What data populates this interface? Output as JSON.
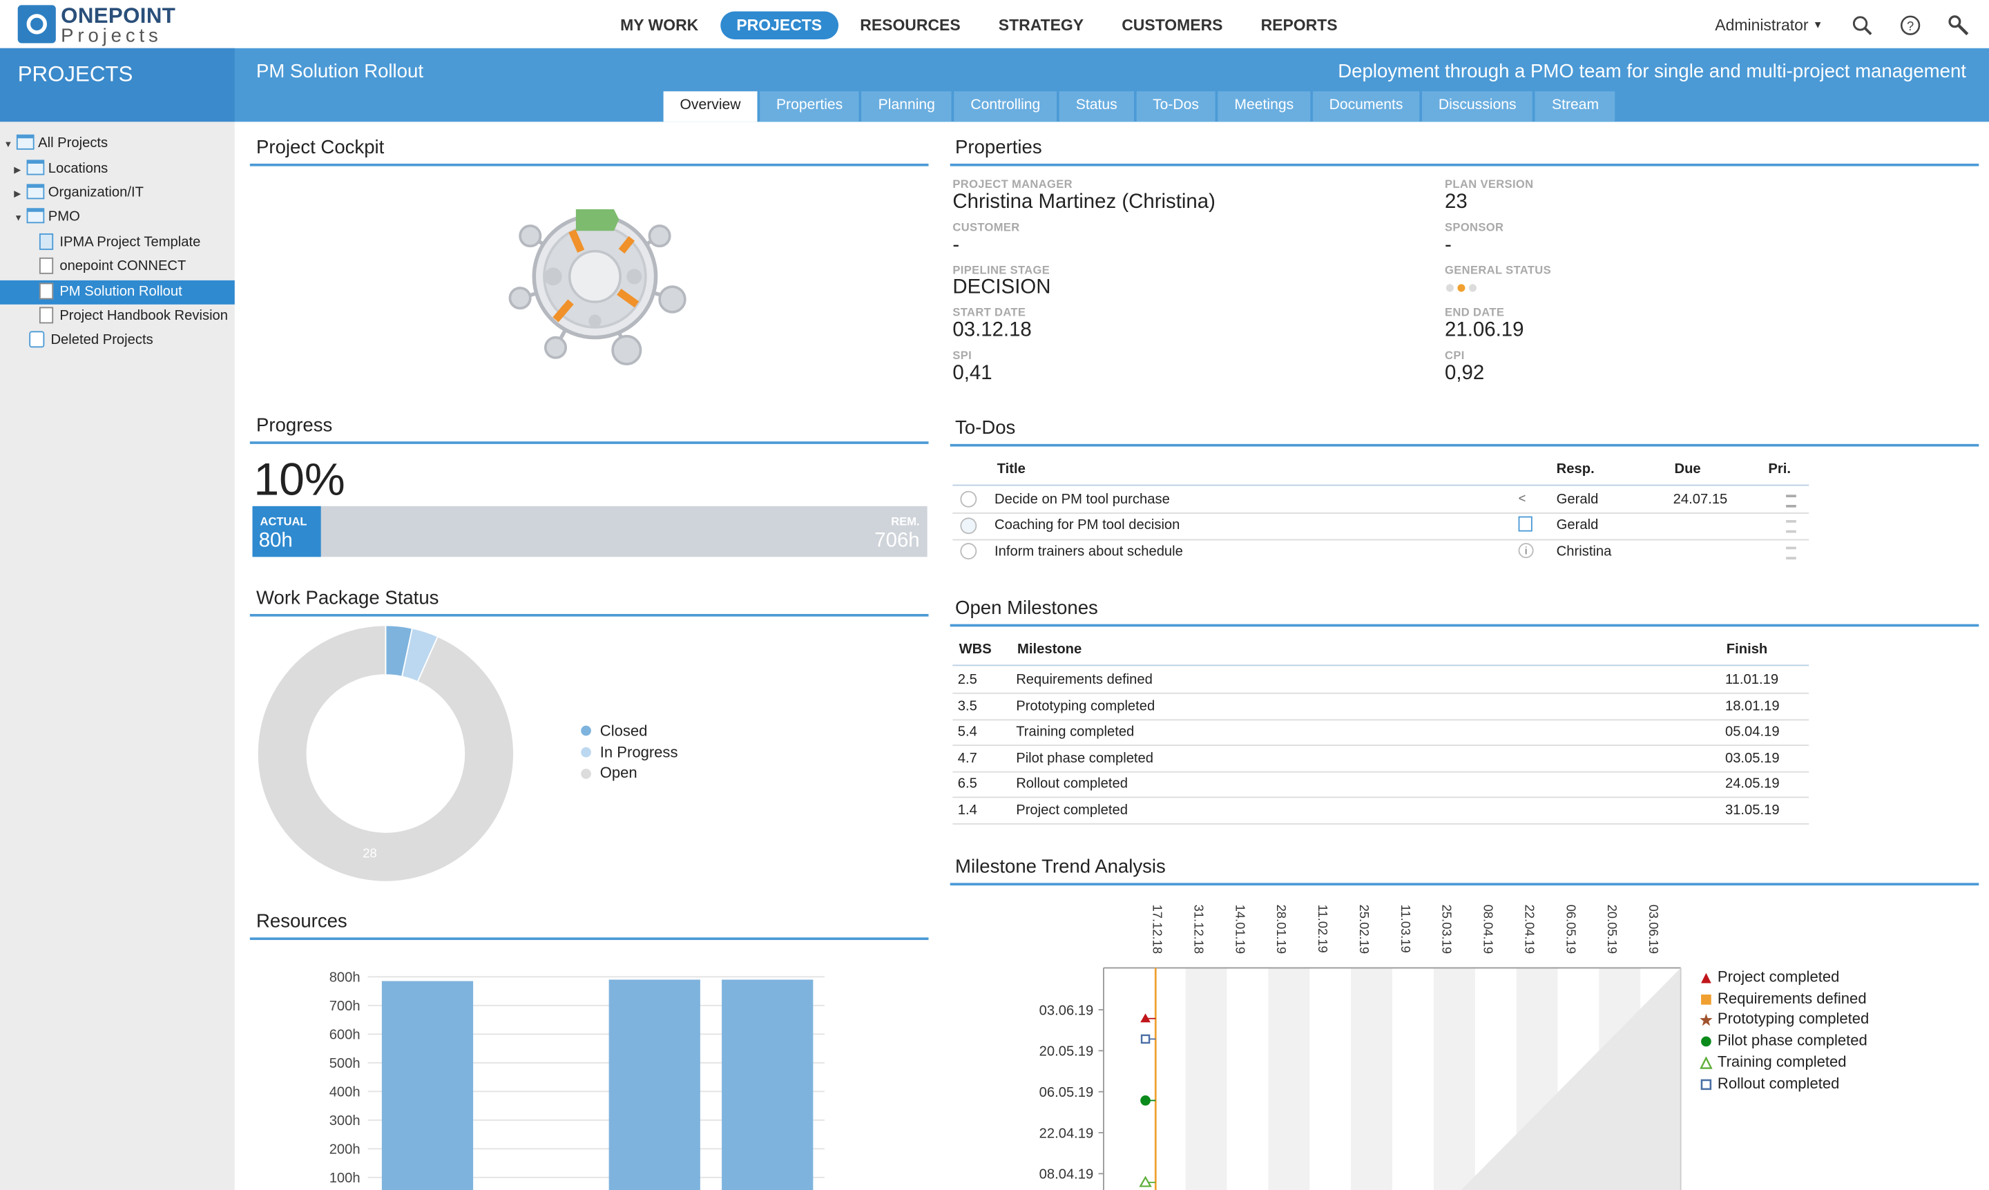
{
  "app": {
    "logo_line1": "ONEPOINT",
    "logo_line2": "Projects"
  },
  "nav": {
    "items": [
      "MY WORK",
      "PROJECTS",
      "RESOURCES",
      "STRATEGY",
      "CUSTOMERS",
      "REPORTS"
    ],
    "active": "PROJECTS",
    "user": "Administrator",
    "icons": [
      "search-icon",
      "help-icon",
      "tools-icon"
    ]
  },
  "sidebar": {
    "title": "PROJECTS",
    "tree": [
      {
        "label": "All Projects",
        "icon": "folder-icon"
      },
      {
        "label": "Locations",
        "icon": "folder-icon"
      },
      {
        "label": "Organization/IT",
        "icon": "folder-icon"
      },
      {
        "label": "PMO",
        "icon": "folder-icon"
      },
      {
        "label": "IPMA Project Template",
        "icon": "template-icon"
      },
      {
        "label": "onepoint CONNECT",
        "icon": "project-icon"
      },
      {
        "label": "PM Solution Rollout",
        "icon": "project-icon",
        "selected": true
      },
      {
        "label": "Project Handbook Revision",
        "icon": "project-icon"
      },
      {
        "label": "Deleted Projects",
        "icon": "trash-icon"
      }
    ]
  },
  "header": {
    "project_title": "PM Solution Rollout",
    "description": "Deployment through a PMO team for single and multi-project management"
  },
  "tabs": [
    "Overview",
    "Properties",
    "Planning",
    "Controlling",
    "Status",
    "To-Dos",
    "Meetings",
    "Documents",
    "Discussions",
    "Stream"
  ],
  "active_tab": "Overview",
  "cockpit": {
    "title": "Project Cockpit"
  },
  "properties": {
    "title": "Properties",
    "project_manager_label": "PROJECT MANAGER",
    "project_manager": "Christina Martinez (Christina)",
    "plan_version_label": "PLAN VERSION",
    "plan_version": "23",
    "customer_label": "CUSTOMER",
    "customer": "-",
    "sponsor_label": "SPONSOR",
    "sponsor": "-",
    "pipeline_stage_label": "PIPELINE STAGE",
    "pipeline_stage": "DECISION",
    "general_status_label": "GENERAL STATUS",
    "general_status": "yellow",
    "start_date_label": "START DATE",
    "start_date": "03.12.18",
    "end_date_label": "END DATE",
    "end_date": "21.06.19",
    "spi_label": "SPI",
    "spi": "0,41",
    "cpi_label": "CPI",
    "cpi": "0,92"
  },
  "progress": {
    "title": "Progress",
    "percent": "10%",
    "actual_label": "ACTUAL",
    "actual": "80h",
    "remaining_label": "REM.",
    "remaining": "706h"
  },
  "todos": {
    "title": "To-Dos",
    "headers": {
      "title": "Title",
      "resp": "Resp.",
      "due": "Due",
      "pri": "Pri."
    },
    "rows": [
      {
        "title": "Decide on PM tool purchase",
        "resp": "Gerald",
        "due": "24.07.15"
      },
      {
        "title": "Coaching for PM tool decision",
        "resp": "Gerald",
        "due": ""
      },
      {
        "title": "Inform trainers about schedule",
        "resp": "Christina",
        "due": ""
      }
    ]
  },
  "wp_status": {
    "title": "Work Package Status",
    "chart_data": {
      "type": "pie",
      "categories": [
        "Closed",
        "In Progress",
        "Open"
      ],
      "values": [
        1,
        1,
        28
      ],
      "colors": [
        "#7eb3dd",
        "#bcd8f0",
        "#dcdcdc"
      ],
      "data_labels": [
        "",
        "",
        "28"
      ]
    },
    "legend": [
      "Closed",
      "In Progress",
      "Open"
    ]
  },
  "milestones": {
    "title": "Open Milestones",
    "headers": {
      "wbs": "WBS",
      "milestone": "Milestone",
      "finish": "Finish"
    },
    "rows": [
      {
        "wbs": "2.5",
        "milestone": "Requirements defined",
        "finish": "11.01.19"
      },
      {
        "wbs": "3.5",
        "milestone": "Prototyping completed",
        "finish": "18.01.19"
      },
      {
        "wbs": "5.4",
        "milestone": "Training completed",
        "finish": "05.04.19"
      },
      {
        "wbs": "4.7",
        "milestone": "Pilot phase completed",
        "finish": "03.05.19"
      },
      {
        "wbs": "6.5",
        "milestone": "Rollout completed",
        "finish": "24.05.19"
      },
      {
        "wbs": "1.4",
        "milestone": "Project completed",
        "finish": "31.05.19"
      }
    ]
  },
  "resources": {
    "title": "Resources",
    "chart_data": {
      "type": "bar",
      "categories": [
        "",
        "",
        "",
        ""
      ],
      "values": [
        785,
        20,
        790,
        790
      ],
      "ylim": [
        0,
        800
      ],
      "yticks": [
        "800h",
        "700h",
        "600h",
        "500h",
        "400h",
        "300h",
        "200h",
        "100h"
      ],
      "color": "#7eb3dd"
    }
  },
  "mta": {
    "title": "Milestone Trend Analysis",
    "chart_data": {
      "type": "scatter",
      "x_labels": [
        "17.12.18",
        "31.12.18",
        "14.01.19",
        "28.01.19",
        "11.02.19",
        "25.02.19",
        "11.03.19",
        "25.03.19",
        "08.04.19",
        "22.04.19",
        "06.05.19",
        "20.05.19",
        "03.06.19"
      ],
      "y_labels": [
        "03.06.19",
        "20.05.19",
        "06.05.19",
        "22.04.19",
        "08.04.19"
      ],
      "series": [
        {
          "name": "Project completed",
          "marker": "triangle",
          "color": "#c0161b",
          "x": "17.12.18",
          "y": "31.05.19"
        },
        {
          "name": "Requirements defined",
          "marker": "square",
          "color": "#f0a030"
        },
        {
          "name": "Prototyping completed",
          "marker": "star",
          "color": "#a0522d"
        },
        {
          "name": "Pilot phase completed",
          "marker": "circle",
          "color": "#0a8a1a",
          "x": "17.12.18",
          "y": "03.05.19"
        },
        {
          "name": "Training completed",
          "marker": "triangle-open",
          "color": "#5fae3a",
          "x": "17.12.18",
          "y": "05.04.19"
        },
        {
          "name": "Rollout completed",
          "marker": "square-open",
          "color": "#4a6fa5",
          "x": "17.12.18",
          "y": "24.05.19"
        }
      ]
    }
  }
}
